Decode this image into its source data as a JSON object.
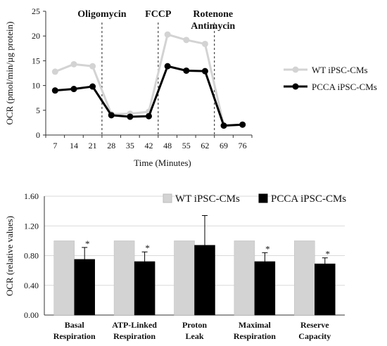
{
  "chart_data": [
    {
      "type": "line",
      "title": "",
      "xlabel": "Time (Minutes)",
      "ylabel": "OCR (pmol/min/µg protein)",
      "x_ticks": [
        "7",
        "14",
        "21",
        "28",
        "35",
        "42",
        "48",
        "55",
        "62",
        "69",
        "76"
      ],
      "ylim": [
        0,
        25
      ],
      "y_ticks": [
        "0",
        "5",
        "10",
        "15",
        "20",
        "25"
      ],
      "injections": [
        {
          "after_tick": "21",
          "label_lines": [
            "Oligomycin"
          ]
        },
        {
          "after_tick": "42",
          "label_lines": [
            "FCCP"
          ]
        },
        {
          "after_tick": "62",
          "label_lines": [
            "Rotenone",
            "Antimycin"
          ]
        }
      ],
      "series": [
        {
          "name": "WT iPSC-CMs",
          "color": "#d3d3d3",
          "values": [
            12.8,
            14.3,
            13.9,
            4.2,
            4.3,
            4.7,
            20.3,
            19.2,
            18.4,
            1.9,
            2.1
          ]
        },
        {
          "name": "PCCA iPSC-CMs",
          "color": "#000000",
          "values": [
            9.0,
            9.3,
            9.8,
            4.0,
            3.7,
            3.8,
            13.9,
            13.0,
            12.9,
            1.9,
            2.1
          ]
        }
      ],
      "legend": "right"
    },
    {
      "type": "bar",
      "title": "",
      "xlabel": "",
      "ylabel": "OCR (relative values)",
      "ylim": [
        0,
        1.6
      ],
      "y_ticks": [
        "0.00",
        "0.40",
        "0.80",
        "1.20",
        "1.60"
      ],
      "categories": [
        [
          "Basal",
          "Respiration"
        ],
        [
          "ATP-Linked",
          "Respiration"
        ],
        [
          "Proton",
          "Leak"
        ],
        [
          "Maximal",
          "Respiration"
        ],
        [
          "Reserve",
          "Capacity"
        ]
      ],
      "series": [
        {
          "name": "WT iPSC-CMs",
          "color": "#d3d3d3",
          "values": [
            1.0,
            1.0,
            1.0,
            1.0,
            1.0
          ]
        },
        {
          "name": "PCCA iPSC-CMs",
          "color": "#000000",
          "values": [
            0.75,
            0.72,
            0.94,
            0.72,
            0.69
          ],
          "error": [
            0.16,
            0.13,
            0.4,
            0.12,
            0.08
          ],
          "significance": [
            "*",
            "*",
            "",
            "*",
            "*"
          ]
        }
      ],
      "legend": "top"
    }
  ]
}
